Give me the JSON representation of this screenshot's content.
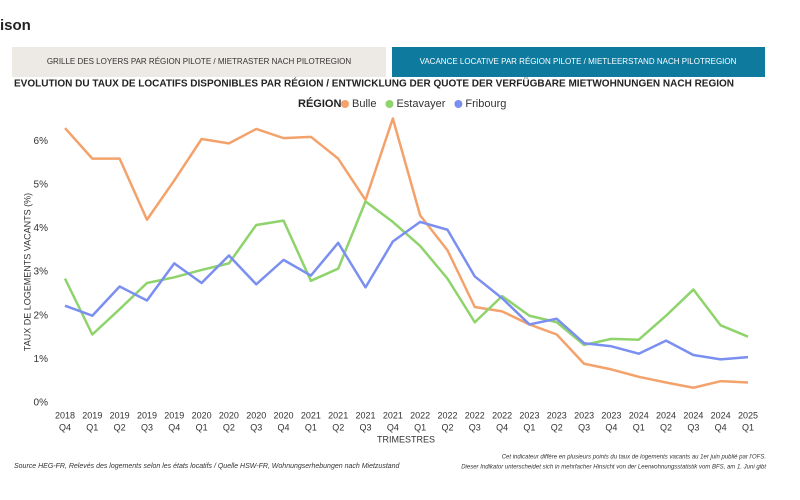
{
  "header": {
    "title": "ison"
  },
  "tabs": [
    "GRILLE DES LOYERS PAR RÉGION PILOTE / MIETRASTER NACH PILOTREGION",
    "VACANCE LOCATIVE PAR RÉGION PILOTE / MIETLEERSTAND NACH PILOTREGION"
  ],
  "chart_data": {
    "type": "line",
    "title": "EVOLUTION DU TAUX DE LOCATIFS DISPONIBLES PAR RÉGION / ENTWICKLUNG DER QUOTE DER VERFÜGBARE MIETWOHNUNGEN NACH REGION",
    "legend_title": "RÉGION",
    "x_label": "TRIMESTRES",
    "y_label": "TAUX DE LOGEMENTS VACANTS (%)",
    "categories": [
      [
        "2018",
        "Q4"
      ],
      [
        "2019",
        "Q1"
      ],
      [
        "2019",
        "Q2"
      ],
      [
        "2019",
        "Q3"
      ],
      [
        "2019",
        "Q4"
      ],
      [
        "2020",
        "Q1"
      ],
      [
        "2020",
        "Q2"
      ],
      [
        "2020",
        "Q3"
      ],
      [
        "2020",
        "Q4"
      ],
      [
        "2021",
        "Q1"
      ],
      [
        "2021",
        "Q2"
      ],
      [
        "2021",
        "Q3"
      ],
      [
        "2021",
        "Q4"
      ],
      [
        "2022",
        "Q1"
      ],
      [
        "2022",
        "Q2"
      ],
      [
        "2022",
        "Q3"
      ],
      [
        "2022",
        "Q4"
      ],
      [
        "2023",
        "Q1"
      ],
      [
        "2023",
        "Q2"
      ],
      [
        "2023",
        "Q3"
      ],
      [
        "2023",
        "Q4"
      ],
      [
        "2024",
        "Q1"
      ],
      [
        "2024",
        "Q2"
      ],
      [
        "2024",
        "Q3"
      ],
      [
        "2024",
        "Q4"
      ],
      [
        "2025",
        "Q1"
      ]
    ],
    "series": [
      {
        "name": "Bulle",
        "color": "#f4a26b",
        "values": [
          6.3,
          5.6,
          5.6,
          4.2,
          5.1,
          6.05,
          5.95,
          6.28,
          6.07,
          6.1,
          5.6,
          4.65,
          6.52,
          4.3,
          3.5,
          2.2,
          2.1,
          1.8,
          1.57,
          0.9,
          0.77,
          0.6,
          0.47,
          0.35,
          0.5,
          0.47
        ]
      },
      {
        "name": "Estavayer",
        "color": "#8ed36b",
        "values": [
          2.85,
          1.57,
          2.15,
          2.75,
          2.88,
          3.05,
          3.2,
          4.08,
          4.18,
          2.8,
          3.08,
          4.62,
          4.15,
          3.6,
          2.85,
          1.85,
          2.45,
          2.0,
          1.85,
          1.33,
          1.47,
          1.45,
          2.0,
          2.6,
          1.78,
          1.52
        ]
      },
      {
        "name": "Fribourg",
        "color": "#7b8ff0",
        "values": [
          2.23,
          2.0,
          2.67,
          2.35,
          3.2,
          2.75,
          3.38,
          2.72,
          3.28,
          2.92,
          3.67,
          2.65,
          3.7,
          4.15,
          3.97,
          2.9,
          2.4,
          1.8,
          1.93,
          1.37,
          1.3,
          1.13,
          1.43,
          1.1,
          1.0,
          1.05
        ]
      }
    ],
    "ylim": [
      0,
      6.6
    ],
    "yticks": [
      {
        "value": 0,
        "label": "0%"
      },
      {
        "value": 1,
        "label": "1%"
      },
      {
        "value": 2,
        "label": "2%"
      },
      {
        "value": 3,
        "label": "3%"
      },
      {
        "value": 4,
        "label": "4%"
      },
      {
        "value": 5,
        "label": "5%"
      },
      {
        "value": 6,
        "label": "6%"
      }
    ],
    "grid": false
  },
  "source": "Source HEG-FR, Relevés des logements selon les états locatifs / Quelle HSW-FR, Wohnungserhebungen nach Mietzustand",
  "notes": [
    "Cet indicateur diffère en plusieurs points du taux de logements vacants au 1er juin publié par l'OFS.",
    "Dieser Indikator unterscheidet sich in mehrfacher Hinsicht von der Leerwohnungsstatistik vom BFS, am 1. Juni gibt"
  ]
}
